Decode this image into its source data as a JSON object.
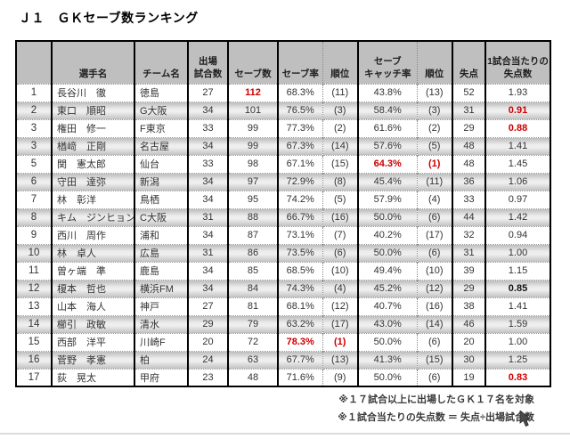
{
  "title": "Ｊ１　ＧＫセーブ数ランキング",
  "colors": {
    "accent_red": "#cc0000",
    "header_bg": "#bfbfbf",
    "stripe_gray": "#c4c4c4"
  },
  "table": {
    "headers": [
      "",
      "選手名",
      "チーム名",
      "出場\n試合数",
      "セーブ数",
      "セーブ率",
      "順位",
      "セーブ\nキャッチ率",
      "順位",
      "失点",
      "1試合当たりの\n失点数"
    ],
    "rows": [
      {
        "cells": [
          "1",
          "長谷川　徹",
          "徳島",
          "27",
          "112",
          "68.3%",
          "(11)",
          "43.8%",
          "(13)",
          "52",
          "1.93"
        ],
        "marks": {
          "4": "red"
        }
      },
      {
        "cells": [
          "2",
          "東口　順昭",
          "G大阪",
          "34",
          "101",
          "76.5%",
          "(3)",
          "58.4%",
          "(3)",
          "31",
          "0.91"
        ],
        "marks": {
          "10": "red"
        }
      },
      {
        "cells": [
          "3",
          "権田　修一",
          "F東京",
          "33",
          "99",
          "77.3%",
          "(2)",
          "61.6%",
          "(2)",
          "29",
          "0.88"
        ],
        "marks": {
          "10": "red"
        }
      },
      {
        "cells": [
          "3",
          "楢﨑　正剛",
          "名古屋",
          "34",
          "99",
          "67.3%",
          "(14)",
          "57.6%",
          "(5)",
          "48",
          "1.41"
        ],
        "marks": {}
      },
      {
        "cells": [
          "5",
          "関　憲太郎",
          "仙台",
          "33",
          "98",
          "67.1%",
          "(15)",
          "64.3%",
          "(1)",
          "48",
          "1.45"
        ],
        "marks": {
          "7": "red",
          "8": "red"
        }
      },
      {
        "cells": [
          "6",
          "守田　達弥",
          "新潟",
          "34",
          "97",
          "72.9%",
          "(8)",
          "45.4%",
          "(11)",
          "36",
          "1.06"
        ],
        "marks": {}
      },
      {
        "cells": [
          "7",
          "林　彰洋",
          "鳥栖",
          "34",
          "95",
          "74.2%",
          "(5)",
          "57.9%",
          "(4)",
          "33",
          "0.97"
        ],
        "marks": {}
      },
      {
        "cells": [
          "8",
          "キム　ジンヒョン",
          "C大阪",
          "31",
          "88",
          "66.7%",
          "(16)",
          "50.0%",
          "(6)",
          "44",
          "1.42"
        ],
        "marks": {}
      },
      {
        "cells": [
          "9",
          "西川　周作",
          "浦和",
          "34",
          "87",
          "73.1%",
          "(7)",
          "40.2%",
          "(17)",
          "32",
          "0.94"
        ],
        "marks": {}
      },
      {
        "cells": [
          "10",
          "林　卓人",
          "広島",
          "31",
          "86",
          "73.5%",
          "(6)",
          "50.0%",
          "(6)",
          "31",
          "1.00"
        ],
        "marks": {}
      },
      {
        "cells": [
          "11",
          "曽ヶ端　準",
          "鹿島",
          "34",
          "85",
          "68.5%",
          "(10)",
          "49.4%",
          "(10)",
          "39",
          "1.15"
        ],
        "marks": {}
      },
      {
        "cells": [
          "12",
          "榎本　哲也",
          "横浜FM",
          "34",
          "84",
          "74.3%",
          "(4)",
          "45.2%",
          "(12)",
          "29",
          "0.85"
        ],
        "marks": {
          "10": "bold"
        }
      },
      {
        "cells": [
          "13",
          "山本　海人",
          "神戸",
          "27",
          "81",
          "68.1%",
          "(12)",
          "40.7%",
          "(16)",
          "38",
          "1.41"
        ],
        "marks": {}
      },
      {
        "cells": [
          "14",
          "櫛引　政敏",
          "清水",
          "29",
          "79",
          "63.2%",
          "(17)",
          "43.0%",
          "(14)",
          "46",
          "1.59"
        ],
        "marks": {}
      },
      {
        "cells": [
          "15",
          "西部　洋平",
          "川崎F",
          "20",
          "72",
          "78.3%",
          "(1)",
          "50.0%",
          "(6)",
          "20",
          "1.00"
        ],
        "marks": {
          "5": "red",
          "6": "red"
        }
      },
      {
        "cells": [
          "16",
          "菅野　孝憲",
          "柏",
          "24",
          "63",
          "67.7%",
          "(13)",
          "41.3%",
          "(15)",
          "30",
          "1.25"
        ],
        "marks": {}
      },
      {
        "cells": [
          "17",
          "荻　晃太",
          "甲府",
          "23",
          "48",
          "71.6%",
          "(9)",
          "50.0%",
          "(6)",
          "19",
          "0.83"
        ],
        "marks": {
          "10": "red"
        }
      }
    ]
  },
  "footnotes": [
    "※１７試合以上に出場したＧＫ１７名を対象",
    "※１試合当たりの失点数 ＝ 失点÷出場試合数"
  ]
}
